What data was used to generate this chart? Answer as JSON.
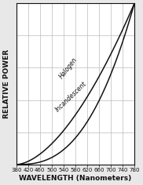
{
  "title": "",
  "xlabel": "WAVELENGTH (Nanometers)",
  "ylabel": "RELATIVE POWER",
  "xmin": 380,
  "xmax": 780,
  "xticks": [
    380,
    420,
    460,
    500,
    540,
    580,
    620,
    660,
    700,
    740,
    780
  ],
  "yticks": [
    0.0,
    0.2,
    0.4,
    0.6,
    0.8,
    1.0
  ],
  "background_color": "#ffffff",
  "outer_background": "#e8e8e8",
  "line_color": "#111111",
  "grid_color": "#bbbbbb",
  "halogen_label": "Halogen",
  "incandescent_label": "Incandescent",
  "label_fontsize": 5.5,
  "axis_label_fontsize": 6.5,
  "tick_fontsize": 5.0,
  "halogen_exp": 1.7,
  "incandescent_exp": 2.6
}
